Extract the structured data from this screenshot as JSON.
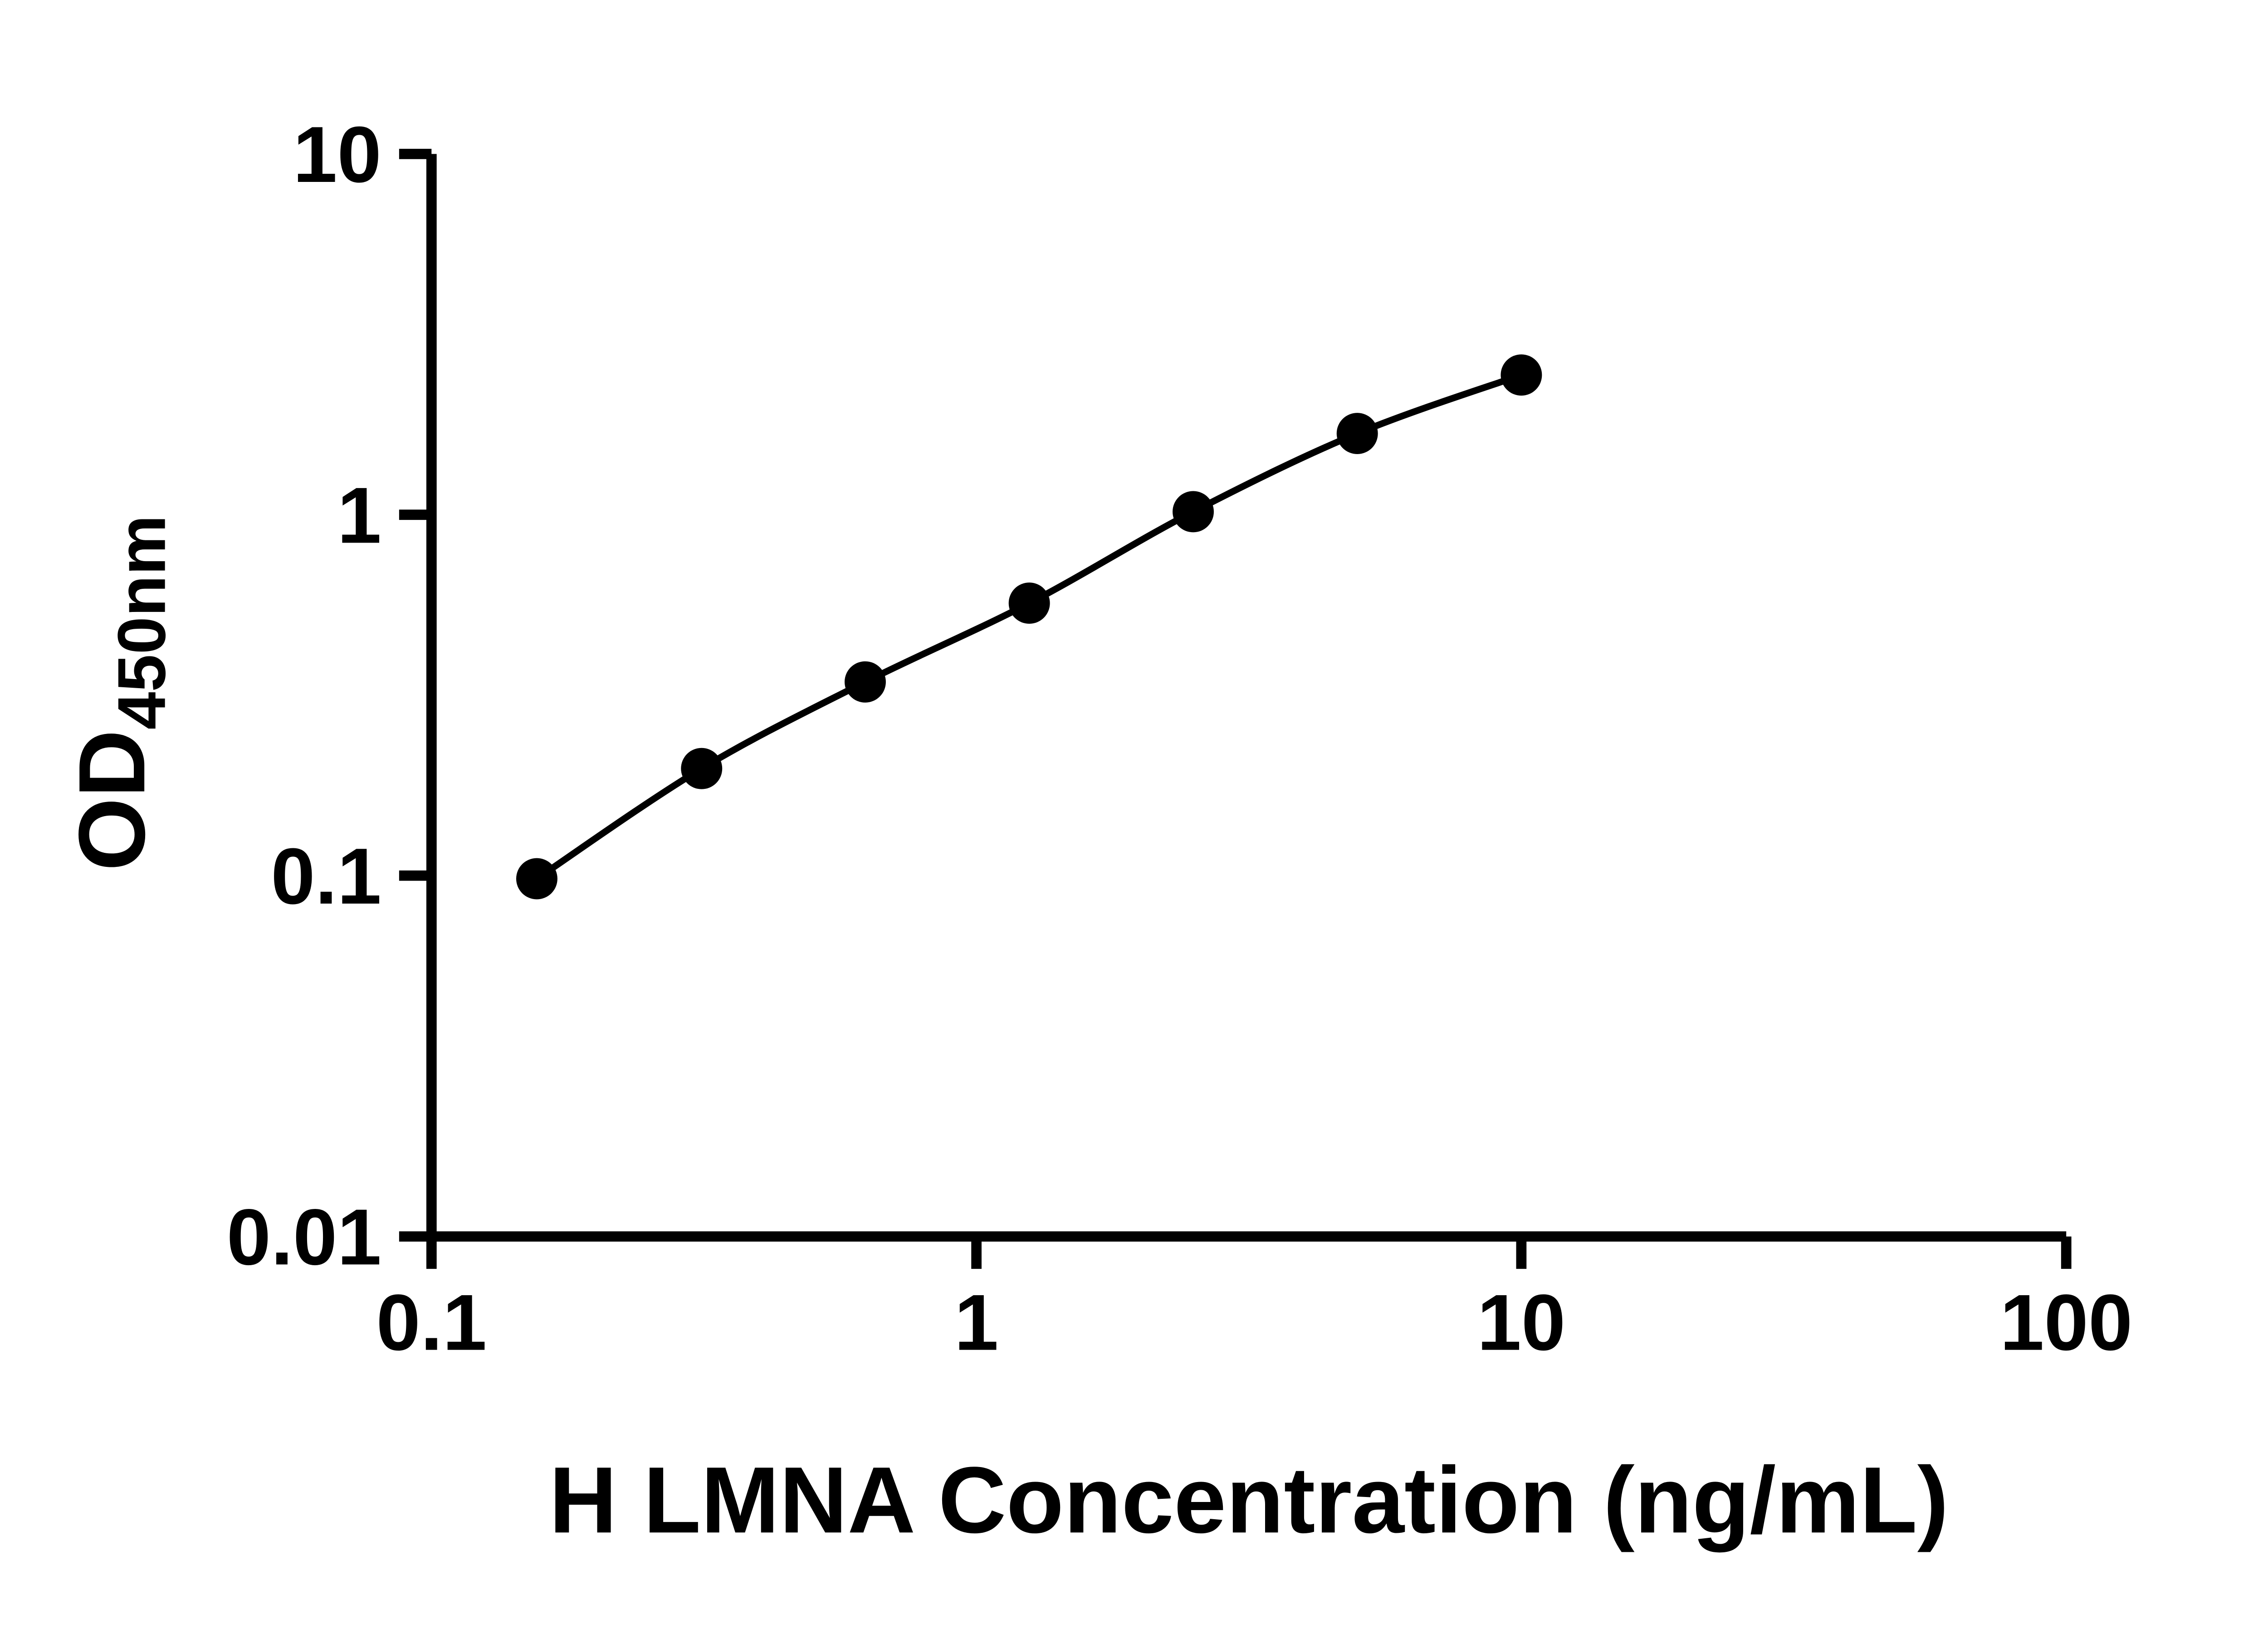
{
  "chart_data": {
    "type": "line",
    "markers": true,
    "title": "",
    "xlabel": "H LMNA Concentration (ng/mL)",
    "ylabel_main": "OD",
    "ylabel_sub": "450nm",
    "x_scale": "log",
    "y_scale": "log",
    "xlim": [
      0.1,
      100
    ],
    "ylim": [
      0.01,
      10
    ],
    "x_ticks": [
      0.1,
      1,
      10,
      100
    ],
    "x_tick_labels": [
      "0.1",
      "1",
      "10",
      "100"
    ],
    "y_ticks": [
      10,
      1,
      0.1,
      0.01
    ],
    "y_tick_labels": [
      "10",
      "1",
      "0.1",
      "0.01"
    ],
    "points": [
      {
        "x": 0.156,
        "y": 0.098
      },
      {
        "x": 0.313,
        "y": 0.198
      },
      {
        "x": 0.625,
        "y": 0.344
      },
      {
        "x": 1.25,
        "y": 0.569
      },
      {
        "x": 2.5,
        "y": 1.02
      },
      {
        "x": 5,
        "y": 1.68
      },
      {
        "x": 10,
        "y": 2.44
      }
    ],
    "grid": false,
    "legend": null,
    "line_color": "#000000",
    "marker_color": "#000000",
    "axis_color": "#000000",
    "background_color": "#ffffff"
  }
}
